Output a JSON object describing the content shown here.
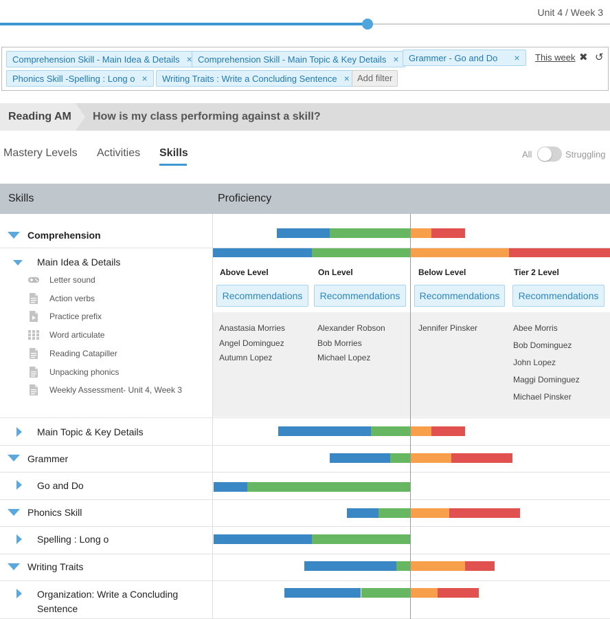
{
  "header": {
    "unit_week": "Unit 4 / Week 3"
  },
  "timeline": {
    "progress_percent": 60
  },
  "filters": {
    "chips": [
      "Comprehension Skill - Main Idea & Details",
      "Comprehension Skill - Main Topic & Key Details",
      "Grammer - Go and Do",
      "Phonics Skill -Spelling : Long o",
      "Writing Traits : Write a Concluding Sentence"
    ],
    "remove_glyph": "×",
    "add_filter": "Add filter",
    "this_week": "This week",
    "close_glyph": "✖",
    "reset_glyph": "↺"
  },
  "breadcrumb": {
    "section": "Reading AM",
    "question": "How is my class performing against a skill?"
  },
  "tabs": [
    {
      "label": "Mastery Levels",
      "active": false
    },
    {
      "label": "Activities",
      "active": false
    },
    {
      "label": "Skills",
      "active": true
    }
  ],
  "toggle": {
    "left_label": "All",
    "right_label": "Struggling",
    "on": false
  },
  "table": {
    "col_skills": "Skills",
    "col_proficiency": "Proficiency"
  },
  "colors": {
    "above": "#3a87c6",
    "on": "#67b762",
    "below": "#f79f4a",
    "tier2": "#e0514f"
  },
  "rows": [
    {
      "label": "Comprehension",
      "level": 0,
      "expanded": true
    },
    {
      "label": "Main Idea & Details",
      "level": 1,
      "expanded": true
    },
    {
      "label": "Main Topic & Key Details",
      "level": 1,
      "expanded": false
    },
    {
      "label": "Grammer",
      "level": 0,
      "expanded": true
    },
    {
      "label": "Go and Do",
      "level": 1,
      "expanded": false
    },
    {
      "label": "Phonics Skill",
      "level": 0,
      "expanded": true
    },
    {
      "label": "Spelling : Long o",
      "level": 1,
      "expanded": false
    },
    {
      "label": "Writing Traits",
      "level": 0,
      "expanded": true
    },
    {
      "label": "Organization: Write a Concluding Sentence",
      "level": 1,
      "expanded": false
    }
  ],
  "activities": [
    {
      "label": "Letter sound",
      "icon": "gamepad-icon"
    },
    {
      "label": "Action verbs",
      "icon": "document-icon"
    },
    {
      "label": "Practice prefix",
      "icon": "video-document-icon"
    },
    {
      "label": "Word articulate",
      "icon": "grid-icon"
    },
    {
      "label": "Reading Catapiller",
      "icon": "document-icon"
    },
    {
      "label": "Unpacking phonics",
      "icon": "document-icon"
    },
    {
      "label": "Weekly Assessment- Unit 4, Week 3",
      "icon": "document-icon"
    }
  ],
  "levels": [
    {
      "title": "Above Level",
      "button": "Recommendations",
      "students": [
        "Anastasia Morries",
        "Angel Dominguez",
        "Autumn Lopez"
      ]
    },
    {
      "title": "On Level",
      "button": "Recommendations",
      "students": [
        "Alexander Robson",
        "Bob Morries",
        "Michael Lopez"
      ]
    },
    {
      "title": "Below Level",
      "button": "Recommendations",
      "students": [
        "Jennifer Pinsker"
      ]
    },
    {
      "title": "Tier 2 Level",
      "button": "Recommendations",
      "students": [
        "Abee Morris",
        "Bob Dominguez",
        "John Lopez",
        "Maggi Dominguez",
        "Michael Pinsker"
      ]
    }
  ],
  "chart_data": {
    "type": "bar",
    "stacked": "diverging",
    "categories": [
      "Comprehension",
      "Main Idea & Details",
      "Main Topic & Key Details",
      "Grammer",
      "Go and Do",
      "Phonics Skill",
      "Spelling : Long o",
      "Writing Traits",
      "Organization: Write a Concluding Sentence"
    ],
    "series": [
      {
        "name": "Above Level",
        "values": [
          27,
          50,
          47,
          31,
          17,
          16,
          50,
          47,
          39
        ]
      },
      {
        "name": "On Level",
        "values": [
          41,
          50,
          20,
          10,
          83,
          16,
          50,
          7,
          25
        ]
      },
      {
        "name": "Below Level",
        "values": [
          11,
          50,
          11,
          21,
          0,
          20,
          0,
          28,
          14
        ]
      },
      {
        "name": "Tier 2 Level",
        "values": [
          17,
          50,
          17,
          31,
          0,
          36,
          0,
          15,
          21
        ]
      }
    ]
  }
}
